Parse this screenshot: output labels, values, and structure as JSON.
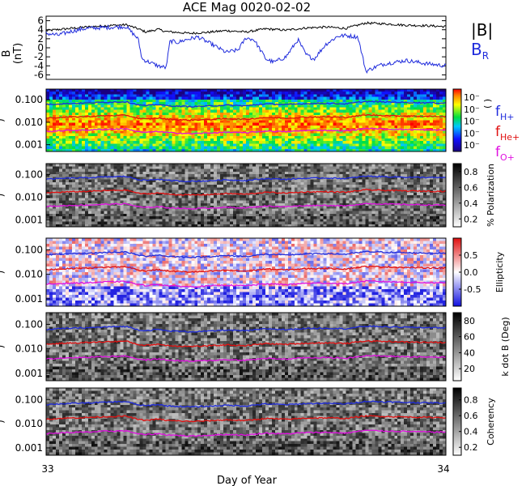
{
  "chart_data": [
    {
      "type": "line",
      "title": "ACE Mag 0020-02-02",
      "ylabel": "B",
      "yunit": "(nT)",
      "ylim": [
        -7,
        7
      ],
      "yticks": [
        "6",
        "4",
        "2",
        "0",
        "-2",
        "-4",
        "-6"
      ],
      "ytick_values": [
        6,
        4,
        2,
        0,
        -2,
        -4,
        -6
      ],
      "series": [
        {
          "name": "|B|",
          "color": "#000000",
          "x": [
            33.0,
            33.05,
            33.1,
            33.15,
            33.2,
            33.23,
            33.25,
            33.28,
            33.3,
            33.33,
            33.36,
            33.4,
            33.45,
            33.5,
            33.55,
            33.6,
            33.65,
            33.7,
            33.75,
            33.8,
            33.85,
            33.9,
            33.95,
            34.0
          ],
          "values": [
            3.8,
            4.2,
            4.6,
            4.9,
            5.1,
            4.2,
            3.5,
            4.1,
            3.6,
            3.4,
            3.2,
            3.4,
            3.8,
            3.5,
            4.2,
            3.9,
            4.4,
            4.6,
            4.3,
            5.5,
            5.3,
            5.0,
            4.9,
            4.7
          ]
        },
        {
          "name": "B_R",
          "color": "#1f2bdc",
          "x": [
            33.0,
            33.03,
            33.06,
            33.1,
            33.15,
            33.2,
            33.23,
            33.24,
            33.28,
            33.3,
            33.31,
            33.33,
            33.35,
            33.38,
            33.42,
            33.45,
            33.48,
            33.5,
            33.52,
            33.55,
            33.57,
            33.6,
            33.63,
            33.65,
            33.67,
            33.7,
            33.73,
            33.75,
            33.78,
            33.8,
            33.83,
            33.85,
            33.9,
            33.95,
            34.0
          ],
          "values": [
            3.2,
            2.8,
            3.6,
            4.3,
            4.5,
            4.7,
            2.0,
            -2.5,
            -4.0,
            -4.4,
            1.5,
            1.2,
            1.8,
            2.4,
            0.5,
            -1.0,
            -0.5,
            2.2,
            1.8,
            -2.5,
            -3.2,
            -2.0,
            1.8,
            -1.5,
            -2.5,
            0.8,
            2.6,
            2.7,
            2.4,
            -5.2,
            -4.0,
            -3.5,
            -2.8,
            -3.5,
            -4.0
          ]
        }
      ]
    },
    {
      "type": "heatmap",
      "ylabel": "f (Hz)",
      "yticks": [
        "0.100",
        "0.010",
        "0.001"
      ],
      "ytick_values": [
        0.1,
        0.01,
        0.001
      ],
      "colorbar_label": "( )",
      "colorbar_ticks": [
        "10⁻",
        "10⁻",
        "10⁻",
        "10⁻",
        "10⁻"
      ],
      "legend": [
        {
          "label": "f",
          "sub": "H+",
          "color": "#1f2bdc"
        },
        {
          "label": "f",
          "sub": "He+",
          "color": "#e01010"
        },
        {
          "label": "f",
          "sub": "O+",
          "color": "#e010e0"
        }
      ]
    },
    {
      "type": "heatmap",
      "ylabel": "f (Hz)",
      "yticks": [
        "0.100",
        "0.010",
        "0.001"
      ],
      "ytick_values": [
        0.1,
        0.01,
        0.001
      ],
      "colorbar_label": "% Polarization",
      "colorbar_ticks": [
        "0.8",
        "0.6",
        "0.4",
        "0.2"
      ],
      "colorbar_values": [
        0.8,
        0.6,
        0.4,
        0.2
      ],
      "colorbar_range": [
        0.1,
        0.9
      ]
    },
    {
      "type": "heatmap",
      "ylabel": "f (Hz)",
      "yticks": [
        "0.100",
        "0.010",
        "0.001"
      ],
      "ytick_values": [
        0.1,
        0.01,
        0.001
      ],
      "colorbar_label": "Ellipticity",
      "colorbar_ticks": [
        "0.5",
        "0.0",
        "-0.5"
      ],
      "colorbar_values": [
        0.5,
        0.0,
        -0.5
      ],
      "colorbar_range": [
        -1.0,
        1.0
      ]
    },
    {
      "type": "heatmap",
      "ylabel": "f (Hz)",
      "yticks": [
        "0.100",
        "0.010",
        "0.001"
      ],
      "ytick_values": [
        0.1,
        0.01,
        0.001
      ],
      "colorbar_label": "k dot B (Deg)",
      "colorbar_ticks": [
        "80",
        "60",
        "40",
        "20"
      ],
      "colorbar_values": [
        80,
        60,
        40,
        20
      ],
      "colorbar_range": [
        5,
        90
      ]
    },
    {
      "type": "heatmap",
      "ylabel": "f (Hz)",
      "yticks": [
        "0.100",
        "0.010",
        "0.001"
      ],
      "ytick_values": [
        0.1,
        0.01,
        0.001
      ],
      "colorbar_label": "Coherency",
      "colorbar_ticks": [
        "0.8",
        "0.6",
        "0.4",
        "0.2"
      ],
      "colorbar_values": [
        0.8,
        0.6,
        0.4,
        0.2
      ],
      "colorbar_range": [
        0.1,
        0.95
      ]
    }
  ],
  "xaxis": {
    "xlabel": "Day of Year",
    "xlim": [
      33,
      34
    ],
    "xticks": [
      "33",
      "34"
    ],
    "xtick_values": [
      33,
      34
    ]
  },
  "gyrofrequency_lines": {
    "x": [
      33.0,
      33.05,
      33.1,
      33.15,
      33.2,
      33.23,
      33.25,
      33.28,
      33.3,
      33.33,
      33.36,
      33.4,
      33.45,
      33.5,
      33.55,
      33.6,
      33.65,
      33.7,
      33.75,
      33.8,
      33.85,
      33.9,
      33.95,
      34.0
    ],
    "H+": {
      "color": "#1f2bdc",
      "values": [
        0.062,
        0.068,
        0.072,
        0.078,
        0.082,
        0.06,
        0.055,
        0.062,
        0.055,
        0.052,
        0.05,
        0.052,
        0.058,
        0.054,
        0.066,
        0.061,
        0.068,
        0.07,
        0.066,
        0.084,
        0.08,
        0.076,
        0.074,
        0.072
      ]
    },
    "He+": {
      "color": "#e01010",
      "values": [
        0.0155,
        0.017,
        0.018,
        0.0195,
        0.0205,
        0.015,
        0.0138,
        0.0155,
        0.0138,
        0.013,
        0.0125,
        0.013,
        0.0145,
        0.0135,
        0.0165,
        0.0152,
        0.017,
        0.0175,
        0.0165,
        0.021,
        0.02,
        0.019,
        0.0185,
        0.018
      ]
    },
    "O+": {
      "color": "#e010e0",
      "values": [
        0.0039,
        0.0043,
        0.0045,
        0.0049,
        0.0051,
        0.0038,
        0.0035,
        0.0039,
        0.0035,
        0.0033,
        0.0031,
        0.0033,
        0.0036,
        0.0034,
        0.0041,
        0.0038,
        0.0043,
        0.0044,
        0.0041,
        0.0053,
        0.005,
        0.0048,
        0.0046,
        0.0045
      ]
    }
  }
}
